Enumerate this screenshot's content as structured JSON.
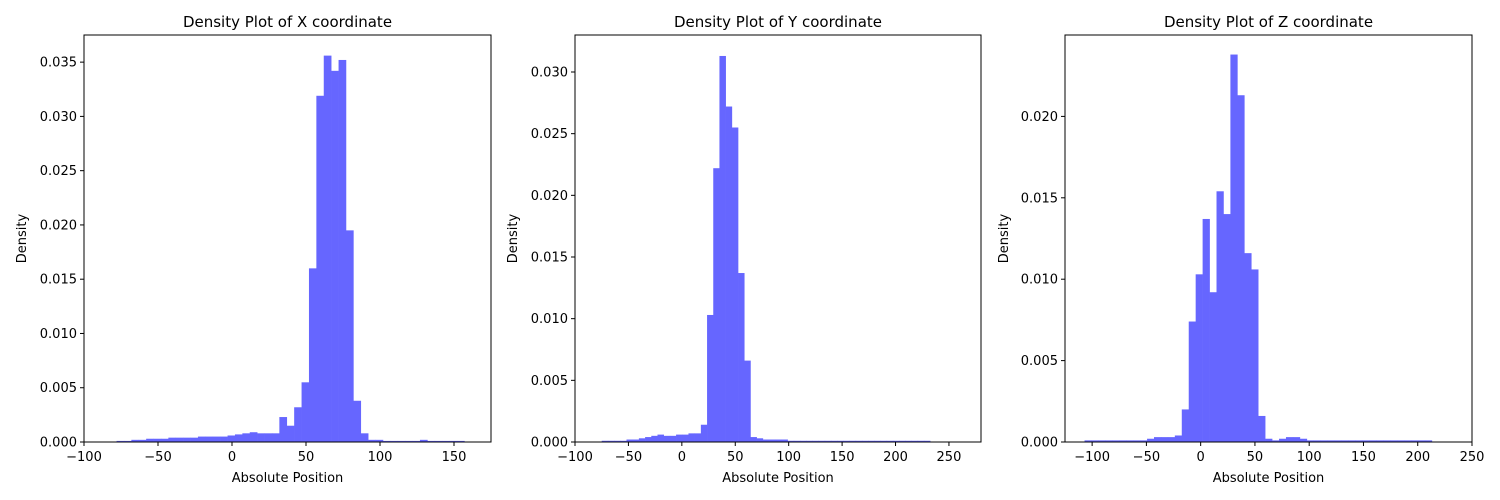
{
  "chart_data": [
    {
      "type": "bar",
      "title": "Density Plot of X coordinate",
      "xlabel": "Absolute Position",
      "ylabel": "Density",
      "xlim": [
        -100,
        175
      ],
      "ylim": [
        0,
        0.0375
      ],
      "xticks": [
        -100,
        -50,
        0,
        50,
        100,
        150
      ],
      "xtick_labels": [
        "−100",
        "−50",
        "0",
        "50",
        "100",
        "150"
      ],
      "yticks": [
        0,
        0.005,
        0.01,
        0.015,
        0.02,
        0.025,
        0.03,
        0.035
      ],
      "ytick_labels": [
        "0.000",
        "0.005",
        "0.010",
        "0.015",
        "0.020",
        "0.025",
        "0.030",
        "0.035"
      ],
      "bar_color": "#6666ff",
      "bin_edges": [
        -78,
        -73,
        -68,
        -63,
        -58,
        -53,
        -48,
        -43,
        -38,
        -33,
        -28,
        -23,
        -18,
        -13,
        -8,
        -3,
        2,
        7,
        12,
        17,
        22,
        27,
        32,
        37,
        42,
        47,
        52,
        57,
        62,
        67,
        72,
        77,
        82,
        87,
        92,
        97,
        102,
        107,
        112,
        117,
        122,
        127,
        132,
        137,
        142,
        147,
        152,
        157
      ],
      "values": [
        0.0001,
        0.0001,
        0.0002,
        0.0002,
        0.0003,
        0.0003,
        0.0003,
        0.0004,
        0.0004,
        0.0004,
        0.0004,
        0.0005,
        0.0005,
        0.0005,
        0.0005,
        0.0006,
        0.0007,
        0.0008,
        0.0009,
        0.0008,
        0.0008,
        0.0008,
        0.0023,
        0.0015,
        0.0032,
        0.0055,
        0.016,
        0.0319,
        0.0356,
        0.0342,
        0.0352,
        0.0195,
        0.0038,
        0.0008,
        0.0002,
        0.0002,
        0.0001,
        0.0001,
        0.0001,
        0.0001,
        0.0001,
        0.0002,
        0.0001,
        0.0001,
        0.0001,
        0.0001,
        0.0001
      ]
    },
    {
      "type": "bar",
      "title": "Density Plot of Y coordinate",
      "xlabel": "Absolute Position",
      "ylabel": "Density",
      "xlim": [
        -100,
        280
      ],
      "ylim": [
        0,
        0.033
      ],
      "xticks": [
        -100,
        -50,
        0,
        50,
        100,
        150,
        200,
        250
      ],
      "xtick_labels": [
        "−100",
        "−50",
        "0",
        "50",
        "100",
        "150",
        "200",
        "250"
      ],
      "yticks": [
        0,
        0.005,
        0.01,
        0.015,
        0.02,
        0.025,
        0.03
      ],
      "ytick_labels": [
        "0.000",
        "0.005",
        "0.010",
        "0.015",
        "0.020",
        "0.025",
        "0.030"
      ],
      "bar_color": "#6666ff",
      "bin_edges": [
        -75,
        -69.2,
        -63.4,
        -57.6,
        -51.8,
        -46,
        -40.2,
        -34.4,
        -28.6,
        -22.8,
        -17,
        -11.2,
        -5.4,
        0.4,
        6.2,
        12,
        17.8,
        23.6,
        29.4,
        35.2,
        41,
        46.8,
        52.6,
        58.4,
        64.2,
        70,
        75.8,
        81.6,
        87.4,
        93.2,
        99,
        104.8,
        110.6,
        116.4,
        122.2,
        128,
        133.8,
        139.6,
        145.4,
        151.2,
        157,
        162.8,
        168.6,
        174.4,
        180.2,
        186,
        191.8,
        197.6,
        203.4,
        209.2,
        215,
        220.8,
        226.6,
        232.4
      ],
      "values": [
        0.0001,
        0.0001,
        0.0001,
        0.0001,
        0.0002,
        0.0002,
        0.0003,
        0.0004,
        0.0005,
        0.0006,
        0.0005,
        0.0005,
        0.0006,
        0.0006,
        0.0007,
        0.0007,
        0.0014,
        0.0103,
        0.0222,
        0.0313,
        0.0272,
        0.0255,
        0.0137,
        0.0066,
        0.0004,
        0.0003,
        0.0002,
        0.0002,
        0.0002,
        0.0002,
        0.0001,
        0.0001,
        0.0001,
        0.0001,
        0.0001,
        0.0001,
        0.0001,
        0.0001,
        0.0001,
        0.0001,
        0.0001,
        0.0001,
        0.0001,
        0.0001,
        0.0001,
        0.0001,
        0.0001,
        0.0001,
        0.0001,
        0.0001,
        0.0001,
        0.0001,
        0.0001
      ]
    },
    {
      "type": "bar",
      "title": "Density Plot of Z coordinate",
      "xlabel": "Absolute Position",
      "ylabel": "Density",
      "xlim": [
        -125,
        250
      ],
      "ylim": [
        0,
        0.025
      ],
      "xticks": [
        -100,
        -50,
        0,
        50,
        100,
        150,
        200,
        250
      ],
      "xtick_labels": [
        "−100",
        "−50",
        "0",
        "50",
        "100",
        "150",
        "200",
        "250"
      ],
      "yticks": [
        0,
        0.005,
        0.01,
        0.015,
        0.02
      ],
      "ytick_labels": [
        "0.000",
        "0.005",
        "0.010",
        "0.015",
        "0.020"
      ],
      "bar_color": "#6666ff",
      "bin_edges": [
        -107,
        -100.6,
        -94.2,
        -87.8,
        -81.4,
        -75,
        -68.6,
        -62.2,
        -55.8,
        -49.4,
        -43,
        -36.6,
        -30.2,
        -23.8,
        -17.4,
        -11,
        -4.6,
        1.8,
        8.2,
        14.6,
        21,
        27.4,
        33.8,
        40.2,
        46.6,
        53,
        59.4,
        65.8,
        72.2,
        78.6,
        85,
        91.4,
        97.8,
        104.2,
        110.6,
        117,
        123.4,
        129.8,
        136.2,
        142.6,
        149,
        155.4,
        161.8,
        168.2,
        174.6,
        181,
        187.4,
        193.8,
        200.2,
        206.6,
        213
      ],
      "values": [
        0.0001,
        0.0001,
        0.0001,
        0.0001,
        0.0001,
        0.0001,
        0.0001,
        0.0001,
        0.0001,
        0.0002,
        0.0003,
        0.0003,
        0.0003,
        0.0004,
        0.002,
        0.0074,
        0.0103,
        0.0137,
        0.0092,
        0.0154,
        0.014,
        0.0238,
        0.0213,
        0.0116,
        0.0106,
        0.0016,
        0.0002,
        0.0001,
        0.0002,
        0.0003,
        0.0003,
        0.0002,
        0.0001,
        0.0001,
        0.0001,
        0.0001,
        0.0001,
        0.0001,
        0.0001,
        0.0001,
        0.0001,
        0.0001,
        0.0001,
        0.0001,
        0.0001,
        0.0001,
        0.0001,
        0.0001,
        0.0001,
        0.0001
      ]
    }
  ]
}
